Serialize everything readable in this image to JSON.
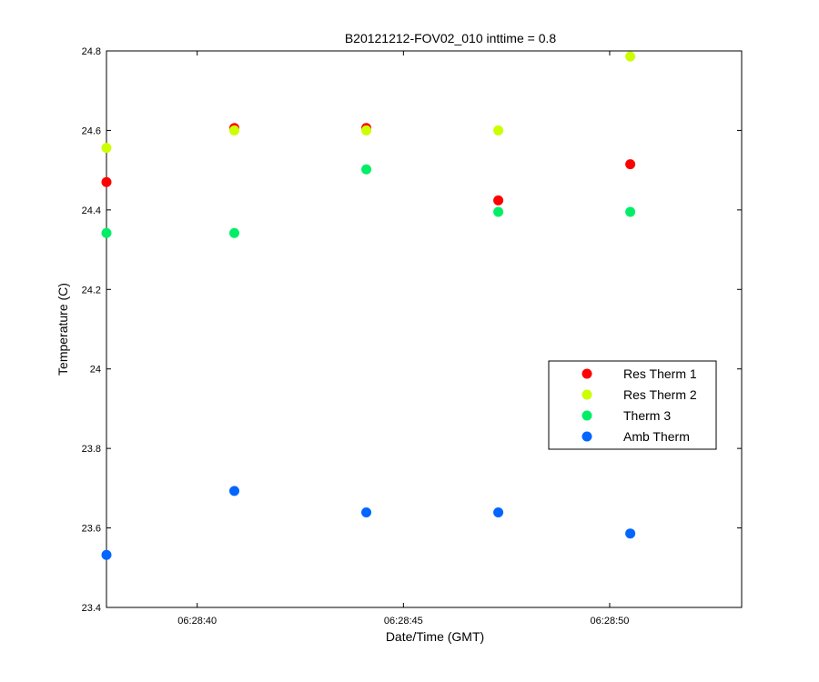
{
  "chart_data": {
    "type": "scatter",
    "title": "B20121212-FOV02_010 inttime = 0.8",
    "xlabel": "Date/Time (GMT)",
    "ylabel": "Temperature (C)",
    "x_unit": "seconds",
    "xlim": [
      "06:28:37.8",
      "06:28:53.2"
    ],
    "ylim": [
      23.4,
      24.8
    ],
    "x_ticks": [
      "06:28:40",
      "06:28:45",
      "06:28:50"
    ],
    "y_ticks": [
      "23.4",
      "23.6",
      "23.8",
      "24",
      "24.2",
      "24.4",
      "24.6",
      "24.8"
    ],
    "grid": false,
    "legend_position": "right",
    "x": [
      "06:28:37.8",
      "06:28:40.9",
      "06:28:44.1",
      "06:28:47.3",
      "06:28:50.5"
    ],
    "series": [
      {
        "name": "Res Therm 1",
        "color": "#ff0000",
        "values": [
          24.47,
          24.606,
          24.606,
          24.424,
          24.515
        ]
      },
      {
        "name": "Res Therm 2",
        "color": "#ccff00",
        "values": [
          24.556,
          24.6,
          24.6,
          24.6,
          24.786
        ]
      },
      {
        "name": "Therm 3",
        "color": "#00ee66",
        "values": [
          24.342,
          24.342,
          24.502,
          24.395,
          24.395
        ]
      },
      {
        "name": "Amb Therm",
        "color": "#0066ff",
        "values": [
          23.532,
          23.693,
          23.639,
          23.639,
          23.586
        ]
      }
    ]
  }
}
